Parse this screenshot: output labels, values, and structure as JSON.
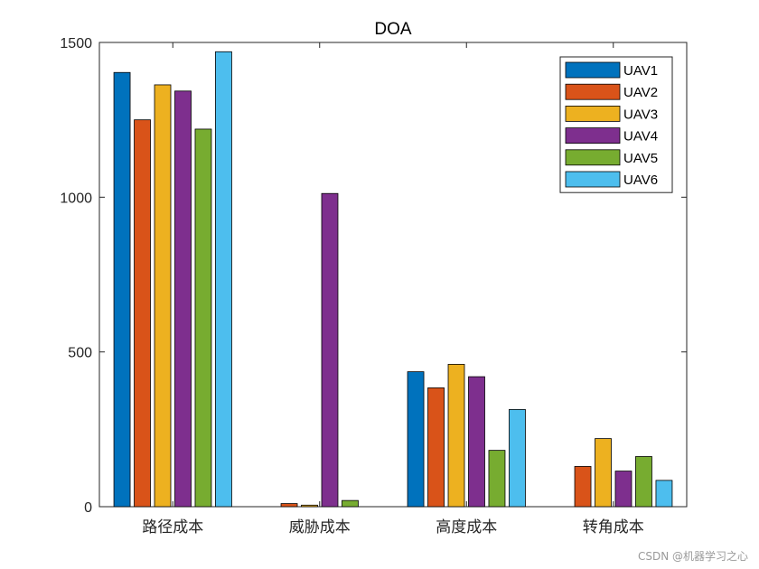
{
  "chart_data": {
    "type": "bar",
    "title": "DOA",
    "categories": [
      "路径成本",
      "威胁成本",
      "高度成本",
      "转角成本"
    ],
    "ylim": [
      0,
      1500
    ],
    "yticks": [
      0,
      500,
      1000,
      1500
    ],
    "grid": false,
    "legend_placement": "top-right",
    "series": [
      {
        "name": "UAV1",
        "color": "#0072BD",
        "values": [
          1403,
          0,
          436,
          0
        ]
      },
      {
        "name": "UAV2",
        "color": "#D95319",
        "values": [
          1250,
          10,
          384,
          130
        ]
      },
      {
        "name": "UAV3",
        "color": "#EDB120",
        "values": [
          1363,
          5,
          460,
          220
        ]
      },
      {
        "name": "UAV4",
        "color": "#7E2F8E",
        "values": [
          1343,
          1012,
          420,
          115
        ]
      },
      {
        "name": "UAV5",
        "color": "#77AC30",
        "values": [
          1220,
          20,
          182,
          162
        ]
      },
      {
        "name": "UAV6",
        "color": "#4DBEEE",
        "values": [
          1470,
          0,
          314,
          85
        ]
      }
    ]
  },
  "watermark": "CSDN @机器学习之心"
}
